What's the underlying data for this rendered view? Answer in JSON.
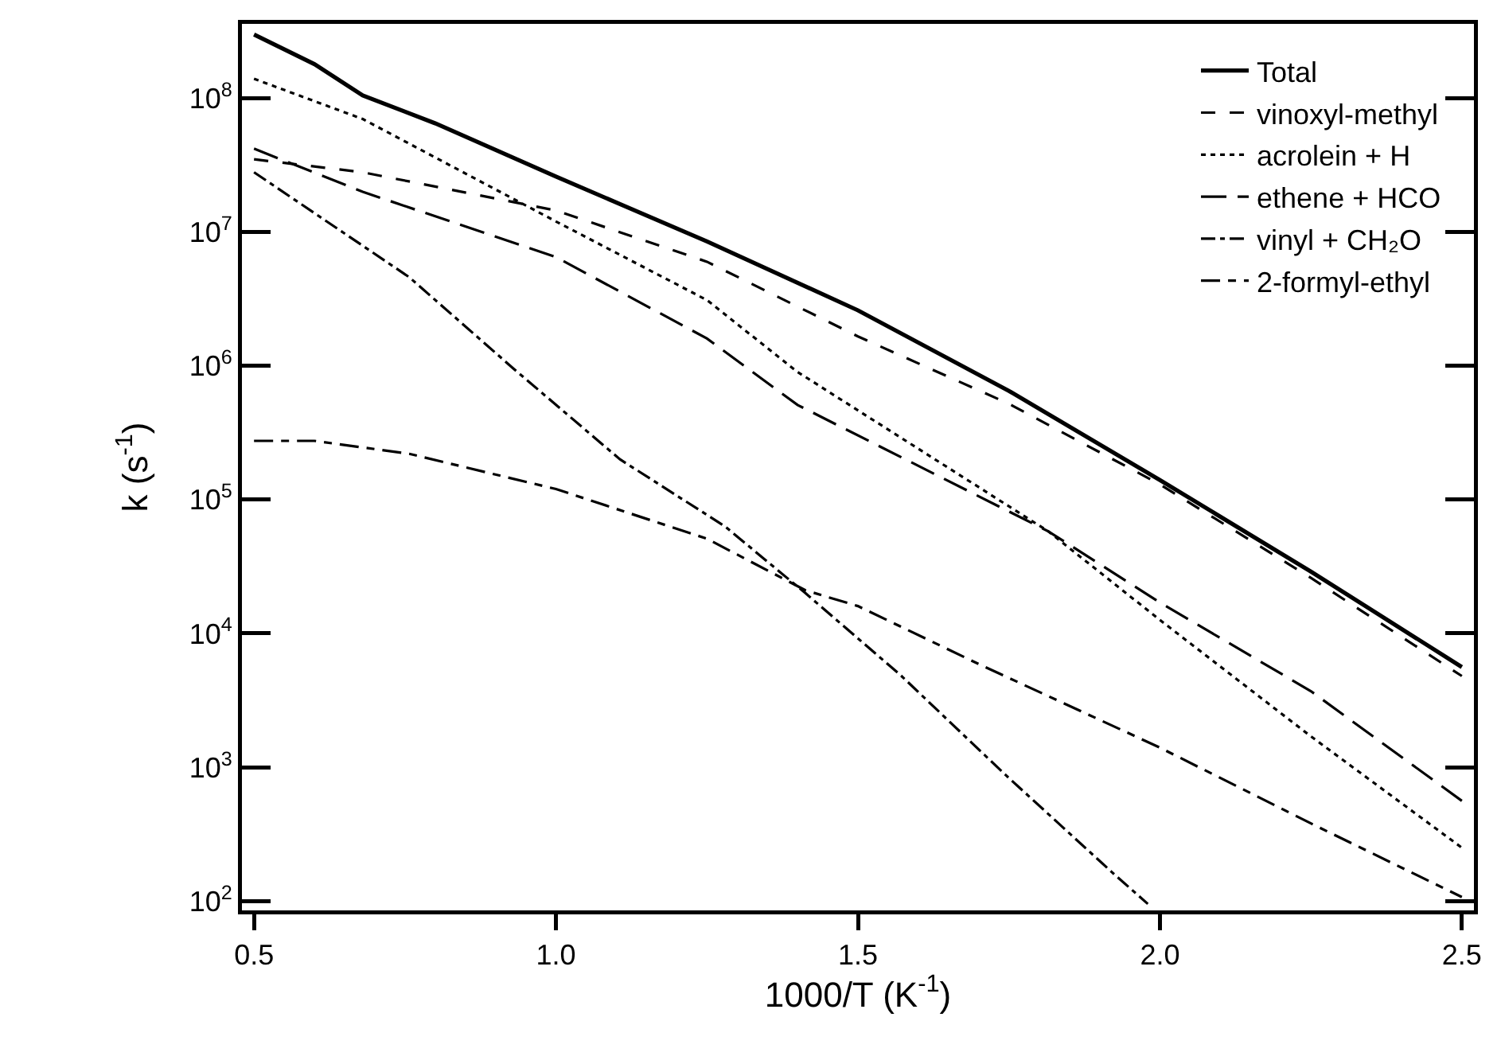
{
  "chart_data": {
    "type": "line",
    "xlabel": "1000/T (K$^{-1}$)",
    "ylabel": "k (s$^{-1}$)",
    "log": "y",
    "grid": false,
    "legend": "top right",
    "marker": "none",
    "xlim": [
      0.48,
      2.52
    ],
    "xticks": [
      {
        "value": 0.5,
        "label": "0.5"
      },
      {
        "value": 1,
        "label": "1.0"
      },
      {
        "value": 1.5,
        "label": "1.5"
      },
      {
        "value": 2,
        "label": "2.0"
      },
      {
        "value": 2.5,
        "label": "2.5"
      }
    ],
    "ylim": [
      85,
      360000000
    ],
    "yticks": [
      {
        "value": 100,
        "label": "10$^{2}$"
      },
      {
        "value": 1000,
        "label": "10$^{3}$"
      },
      {
        "value": 10000,
        "label": "10$^{4}$"
      },
      {
        "value": 100000,
        "label": "10$^{5}$"
      },
      {
        "value": 1000000,
        "label": "10$^{6}$"
      },
      {
        "value": 10000000,
        "label": "10$^{7}$"
      },
      {
        "value": 100000000,
        "label": "10$^{8}$"
      }
    ],
    "series": [
      {
        "name": "Total",
        "color": "#000000",
        "line_style": "solid",
        "x": [
          0.5,
          0.6,
          0.68,
          0.8,
          1.0,
          1.25,
          1.5,
          1.75,
          2.0,
          2.25,
          2.5
        ],
        "values": [
          300000000,
          180000000,
          105000000,
          65000000,
          26000000,
          8500000,
          2600000,
          650000,
          140000,
          29000,
          5600
        ]
      },
      {
        "name": "vinoxyl-methyl",
        "color": "#000000",
        "line_style": "dashed",
        "x": [
          0.5,
          0.68,
          1.0,
          1.25,
          1.5,
          1.75,
          2.0,
          2.25,
          2.5
        ],
        "values": [
          35000000,
          28000000,
          14500000,
          6000000,
          1660000,
          520000,
          130000,
          26000,
          4800
        ]
      },
      {
        "name": "acrolein + H",
        "color": "#000000",
        "line_style": "dotted",
        "x": [
          0.5,
          0.68,
          1.0,
          1.25,
          1.4,
          1.6,
          1.815,
          2.0,
          2.25,
          2.5
        ],
        "values": [
          140000000,
          70000000,
          12000000,
          3100000,
          900000,
          240000,
          58000,
          12600,
          1700,
          250
        ]
      },
      {
        "name": "ethene + HCO",
        "color": "#000000",
        "line_style": "dashed",
        "x": [
          0.5,
          0.68,
          1.0,
          1.25,
          1.4,
          1.815,
          2.0,
          2.25,
          2.5
        ],
        "values": [
          42000000,
          20000000,
          6500000,
          1600000,
          510000,
          58000,
          17000,
          3700,
          560
        ]
      },
      {
        "name": "vinyl + CH₂O",
        "color": "#000000",
        "line_style": "dashed",
        "x": [
          0.5,
          0.757,
          0.93,
          1.106,
          1.28,
          1.413,
          1.57,
          1.745,
          1.92,
          1.98
        ],
        "values": [
          28000000,
          4600000,
          950000,
          200000,
          63000,
          20000,
          4900,
          870,
          165,
          95
        ]
      },
      {
        "name": "2-formyl-ethyl",
        "color": "#000000",
        "line_style": "dashed",
        "x": [
          0.5,
          0.6,
          0.757,
          1.0,
          1.25,
          1.413,
          1.5,
          1.7,
          2.0,
          2.25,
          2.5
        ],
        "values": [
          275000,
          275000,
          220000,
          120000,
          51000,
          21000,
          16000,
          5900,
          1400,
          380,
          107
        ]
      }
    ]
  }
}
